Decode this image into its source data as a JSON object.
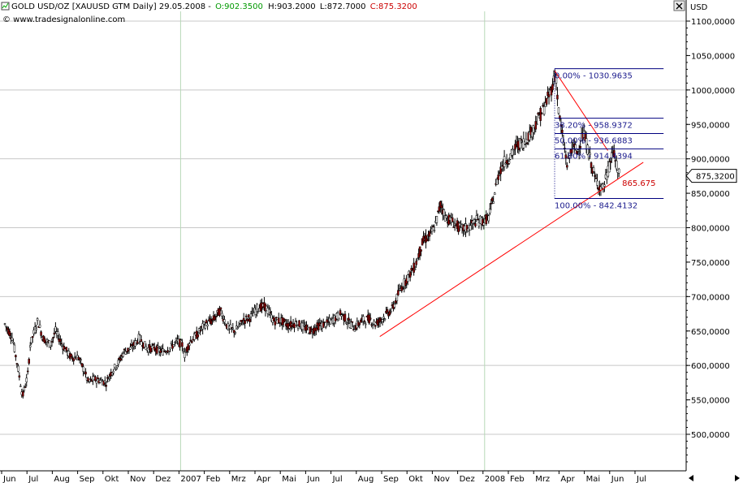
{
  "header": {
    "symbol": "GOLD USD/OZ [XAUUSD GTM  Daily] 29.05.2008 -",
    "open_label": "O:902.3500",
    "high_label": "H:903.2000",
    "low_label": "L:872.7000",
    "close_label": "C:875.3200",
    "copyright": "© www.tradesignalonline.com",
    "currency": "USD"
  },
  "colors": {
    "open": "#009900",
    "close": "#cc0000",
    "grid": "#c8c8c8",
    "trend": "#ff0000",
    "fib": "#000080",
    "candle_body": "#8b0000"
  },
  "chart_data": {
    "type": "candlestick",
    "title": "GOLD USD/OZ [XAUUSD GTM Daily] 29.05.2008",
    "ylabel": "USD",
    "ylim": [
      450,
      1125
    ],
    "y_ticks": [
      500,
      550,
      600,
      650,
      700,
      750,
      800,
      850,
      900,
      950,
      1000,
      1050,
      1100
    ],
    "y_tick_labels": [
      "500,0000",
      "550,0000",
      "600,0000",
      "650,0000",
      "700,0000",
      "750,0000",
      "800,0000",
      "850,0000",
      "900,0000",
      "950,0000",
      "1000,0000",
      "1050,0000",
      "1100,0000"
    ],
    "x_labels": [
      "Jun",
      "Jul",
      "Aug",
      "Sep",
      "Okt",
      "Nov",
      "Dez",
      "2007",
      "Feb",
      "Mrz",
      "Apr",
      "Mai",
      "Jun",
      "Jul",
      "Aug",
      "Sep",
      "Okt",
      "Nov",
      "Dez",
      "2008",
      "Feb",
      "Mrz",
      "Apr",
      "Mai",
      "Jun",
      "Jul"
    ],
    "price_series": [
      [
        0,
        660
      ],
      [
        0.3,
        640
      ],
      [
        0.5,
        600
      ],
      [
        0.7,
        555
      ],
      [
        0.9,
        585
      ],
      [
        1.0,
        630
      ],
      [
        1.3,
        665
      ],
      [
        1.5,
        640
      ],
      [
        1.8,
        630
      ],
      [
        2.0,
        650
      ],
      [
        2.3,
        628
      ],
      [
        2.6,
        612
      ],
      [
        2.9,
        612
      ],
      [
        3.1,
        595
      ],
      [
        3.3,
        575
      ],
      [
        3.5,
        580
      ],
      [
        3.8,
        578
      ],
      [
        4.0,
        575
      ],
      [
        4.2,
        590
      ],
      [
        4.5,
        605
      ],
      [
        4.7,
        620
      ],
      [
        5.0,
        625
      ],
      [
        5.3,
        640
      ],
      [
        5.6,
        625
      ],
      [
        5.9,
        625
      ],
      [
        6.2,
        620
      ],
      [
        6.5,
        625
      ],
      [
        6.8,
        635
      ],
      [
        7.0,
        630
      ],
      [
        7.1,
        615
      ],
      [
        7.3,
        635
      ],
      [
        7.6,
        645
      ],
      [
        7.9,
        660
      ],
      [
        8.2,
        665
      ],
      [
        8.5,
        680
      ],
      [
        8.8,
        655
      ],
      [
        9.1,
        650
      ],
      [
        9.4,
        665
      ],
      [
        9.7,
        670
      ],
      [
        10.0,
        685
      ],
      [
        10.3,
        685
      ],
      [
        10.6,
        665
      ],
      [
        10.9,
        665
      ],
      [
        11.2,
        658
      ],
      [
        11.5,
        662
      ],
      [
        11.8,
        655
      ],
      [
        12.1,
        650
      ],
      [
        12.4,
        658
      ],
      [
        12.7,
        660
      ],
      [
        13.0,
        668
      ],
      [
        13.3,
        675
      ],
      [
        13.5,
        665
      ],
      [
        13.8,
        655
      ],
      [
        14.1,
        665
      ],
      [
        14.4,
        668
      ],
      [
        14.6,
        660
      ],
      [
        14.8,
        665
      ],
      [
        15.0,
        672
      ],
      [
        15.3,
        682
      ],
      [
        15.6,
        710
      ],
      [
        15.9,
        728
      ],
      [
        16.2,
        745
      ],
      [
        16.5,
        780
      ],
      [
        16.8,
        790
      ],
      [
        17.0,
        805
      ],
      [
        17.2,
        835
      ],
      [
        17.4,
        815
      ],
      [
        17.7,
        808
      ],
      [
        18.0,
        798
      ],
      [
        18.3,
        800
      ],
      [
        18.6,
        810
      ],
      [
        18.9,
        810
      ],
      [
        19.1,
        815
      ],
      [
        19.3,
        845
      ],
      [
        19.5,
        880
      ],
      [
        19.7,
        895
      ],
      [
        20.0,
        905
      ],
      [
        20.2,
        920
      ],
      [
        20.5,
        925
      ],
      [
        20.8,
        940
      ],
      [
        21.0,
        955
      ],
      [
        21.3,
        975
      ],
      [
        21.6,
        1005
      ],
      [
        21.75,
        1025
      ],
      [
        21.85,
        970
      ],
      [
        22.0,
        935
      ],
      [
        22.2,
        890
      ],
      [
        22.4,
        920
      ],
      [
        22.6,
        910
      ],
      [
        22.8,
        935
      ],
      [
        22.9,
        930
      ],
      [
        23.1,
        900
      ],
      [
        23.3,
        870
      ],
      [
        23.5,
        860
      ],
      [
        23.6,
        855
      ],
      [
        23.8,
        880
      ],
      [
        24.0,
        912
      ],
      [
        24.1,
        895
      ],
      [
        24.25,
        875.32
      ]
    ],
    "trendlines": [
      {
        "from": [
          14.8,
          642
        ],
        "to": [
          25.2,
          895
        ]
      },
      {
        "from": [
          21.7,
          1028
        ],
        "to": [
          23.8,
          912
        ]
      }
    ],
    "fib_levels": [
      {
        "label": "0.00% - 1030.9635",
        "value": 1030.9635
      },
      {
        "label": "38.20% - 958.9372",
        "value": 958.9372
      },
      {
        "label": "50.00% - 936.6883",
        "value": 936.6883
      },
      {
        "label": "61.80% - 914.4394",
        "value": 914.4394
      },
      {
        "label": "100.00% - 842.4132",
        "value": 842.4132
      }
    ],
    "fib_x_start": 21.7,
    "fib_x_end": 26.0,
    "annotation": {
      "text": "865.675",
      "value": 865.675,
      "x": 24.3
    },
    "current_price": {
      "value": 875.32,
      "label": "875,3200"
    }
  }
}
